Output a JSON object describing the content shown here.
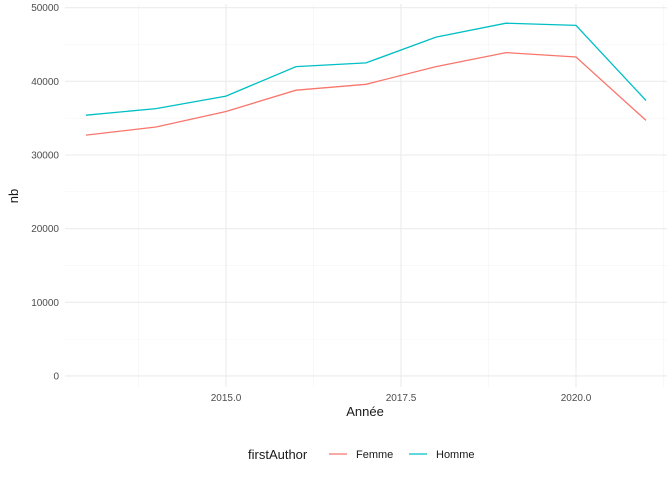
{
  "chart_data": {
    "type": "line",
    "xlabel": "Année",
    "ylabel": "nb",
    "xlim": [
      2012.7,
      2021.3
    ],
    "ylim": [
      -1500,
      50500
    ],
    "x_ticks": [
      2015.0,
      2017.5,
      2020.0
    ],
    "x_tick_labels": [
      "2015.0",
      "2017.5",
      "2020.0"
    ],
    "y_ticks": [
      0,
      10000,
      20000,
      30000,
      40000,
      50000
    ],
    "y_tick_labels": [
      "0",
      "10000",
      "20000",
      "30000",
      "40000",
      "50000"
    ],
    "grid": true,
    "legend": {
      "title": "firstAuthor",
      "position": "bottom"
    },
    "x": [
      2013,
      2014,
      2015,
      2016,
      2017,
      2018,
      2019,
      2020,
      2021
    ],
    "series": [
      {
        "name": "Femme",
        "color": "#F8766D",
        "values": [
          32700,
          33800,
          35900,
          38800,
          39600,
          42000,
          43900,
          43300,
          34700
        ]
      },
      {
        "name": "Homme",
        "color": "#00BFC4",
        "values": [
          35400,
          36300,
          38000,
          42000,
          42500,
          46000,
          47900,
          47600,
          37400
        ]
      }
    ]
  }
}
